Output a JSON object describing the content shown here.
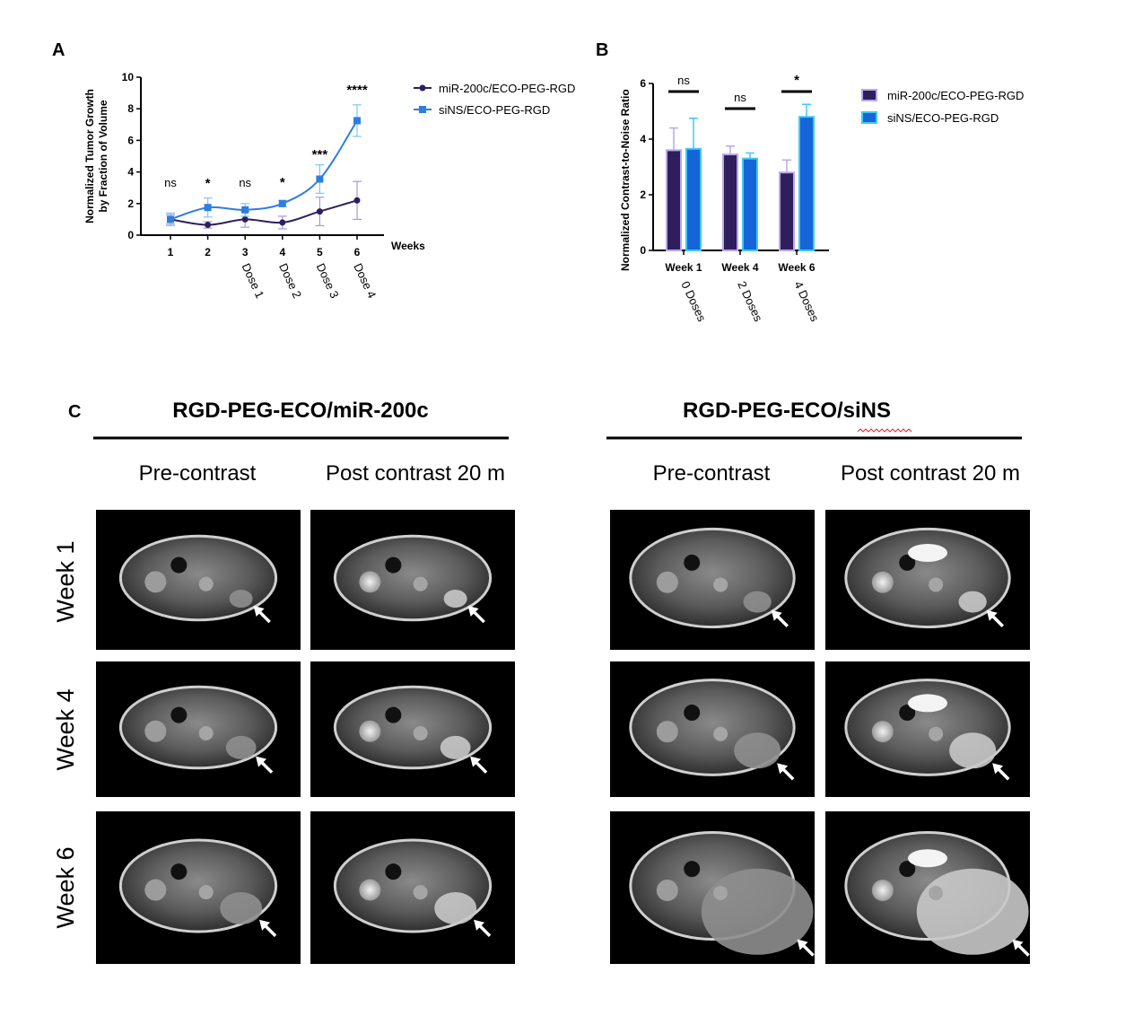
{
  "panel_c": {
    "label": "C",
    "groups": [
      {
        "title": "RGD-PEG-ECO/miR-200c",
        "columns": [
          "Pre-contrast",
          "Post contrast 20 m"
        ]
      },
      {
        "title": "RGD-PEG-ECO/siNS",
        "columns": [
          "Pre-contrast",
          "Post contrast 20 m"
        ]
      }
    ],
    "rows": [
      "Week 1",
      "Week 4",
      "Week 6"
    ]
  },
  "colors": {
    "miR": "#2e1f5c",
    "miR_light": "#a898d8",
    "siNS": "#2f7de1",
    "siNS_light": "#7ec8f0",
    "barA": "#2e1f5c",
    "barA_edge": "#b9a8e6",
    "barB": "#1565d8",
    "barB_edge": "#40c8f4",
    "squiggle": "#e03030"
  },
  "chart_data": [
    {
      "panel": "A",
      "type": "line",
      "ylabel": "Normalized Tumor Growth by Fraction of Volume",
      "ylabel_lines": [
        "Normalized Tumor Growth",
        "by Fraction of Volume"
      ],
      "xlabel": "Weeks",
      "ylim": [
        0,
        10
      ],
      "yticks": [
        0,
        2,
        4,
        6,
        8,
        10
      ],
      "x": [
        1,
        2,
        3,
        4,
        5,
        6
      ],
      "dose_labels": [
        "",
        "",
        "Dose 1",
        "Dose 2",
        "Dose 3",
        "Dose 4"
      ],
      "series": [
        {
          "name": "miR-200c/ECO-PEG-RGD",
          "values": [
            1.0,
            0.65,
            1.0,
            0.8,
            1.5,
            2.2
          ],
          "err": [
            0.3,
            0.2,
            0.5,
            0.4,
            0.9,
            1.2
          ]
        },
        {
          "name": "siNS/ECO-PEG-RGD",
          "values": [
            1.0,
            1.75,
            1.6,
            2.0,
            3.55,
            7.25
          ],
          "err": [
            0.4,
            0.6,
            0.4,
            0.2,
            0.9,
            1.0
          ]
        }
      ],
      "significance": [
        "ns",
        "*",
        "ns",
        "*",
        "***",
        "****"
      ],
      "legend": "right"
    },
    {
      "panel": "B",
      "type": "bar",
      "ylabel": "Normalized Contrast-to-Noise Ratio",
      "ylim": [
        0,
        6
      ],
      "yticks": [
        0,
        2,
        4,
        6
      ],
      "categories": [
        "Week 1",
        "Week 4",
        "Week 6"
      ],
      "dose_labels": [
        "0 Doses",
        "2 Doses",
        "4 Doses"
      ],
      "series": [
        {
          "name": "miR-200c/ECO-PEG-RGD",
          "values": [
            3.6,
            3.45,
            2.8
          ],
          "err": [
            0.8,
            0.3,
            0.45
          ]
        },
        {
          "name": "siNS/ECO-PEG-RGD",
          "values": [
            3.65,
            3.3,
            4.8
          ],
          "err": [
            1.1,
            0.2,
            0.45
          ]
        }
      ],
      "significance": [
        "ns",
        "ns",
        "*"
      ],
      "legend": "right"
    }
  ]
}
